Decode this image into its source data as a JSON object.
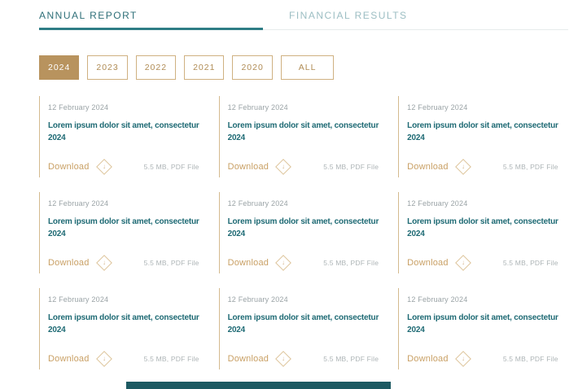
{
  "header": {
    "tabs": [
      {
        "label": "ANNUAL REPORT",
        "active": true
      },
      {
        "label": "FINANCIAL RESULTS",
        "active": false
      }
    ]
  },
  "filters": {
    "years": [
      "2024",
      "2023",
      "2022",
      "2021",
      "2020",
      "ALL"
    ],
    "active": "2024"
  },
  "cards": [
    {
      "date": "12 February 2024",
      "title": "Lorem ipsum dolor sit amet, consectetur\n2024",
      "download_label": "Download",
      "file_info": "5.5 MB, PDF File"
    },
    {
      "date": "12 February 2024",
      "title": "Lorem ipsum dolor sit amet, consectetur\n2024",
      "download_label": "Download",
      "file_info": "5.5 MB, PDF File"
    },
    {
      "date": "12 February 2024",
      "title": "Lorem ipsum dolor sit amet, consectetur\n2024",
      "download_label": "Download",
      "file_info": "5.5 MB, PDF File"
    },
    {
      "date": "12 February 2024",
      "title": "Lorem ipsum dolor sit amet, consectetur\n2024",
      "download_label": "Download",
      "file_info": "5.5 MB, PDF File"
    },
    {
      "date": "12 February 2024",
      "title": "Lorem ipsum dolor sit amet, consectetur\n2024",
      "download_label": "Download",
      "file_info": "5.5 MB, PDF File"
    },
    {
      "date": "12 February 2024",
      "title": "Lorem ipsum dolor sit amet, consectetur\n2024",
      "download_label": "Download",
      "file_info": "5.5 MB, PDF File"
    },
    {
      "date": "12 February 2024",
      "title": "Lorem ipsum dolor sit amet, consectetur\n2024",
      "download_label": "Download",
      "file_info": "5.5 MB, PDF File"
    },
    {
      "date": "12 February 2024",
      "title": "Lorem ipsum dolor sit amet, consectetur\n2024",
      "download_label": "Download",
      "file_info": "5.5 MB, PDF File"
    },
    {
      "date": "12 February 2024",
      "title": "Lorem ipsum dolor sit amet, consectetur\n2024",
      "download_label": "Download",
      "file_info": "5.5 MB, PDF File"
    }
  ],
  "icons": {
    "download": "diamond-arrow-down-icon",
    "download_glyph": "↓"
  },
  "colors": {
    "tab_active_text": "#2e6f78",
    "tab_inactive_text": "#9cbec3",
    "tab_underline": "#2e7d85",
    "gold_button_bg": "#b8935e",
    "gold_border": "#cfb181",
    "gold_text": "#c9a065",
    "card_border": "#d4ba8e",
    "title_teal": "#1e6a74",
    "date_gray": "#9aa3a6",
    "file_gray": "#adb4b6",
    "footer_band": "#1d5a62"
  }
}
